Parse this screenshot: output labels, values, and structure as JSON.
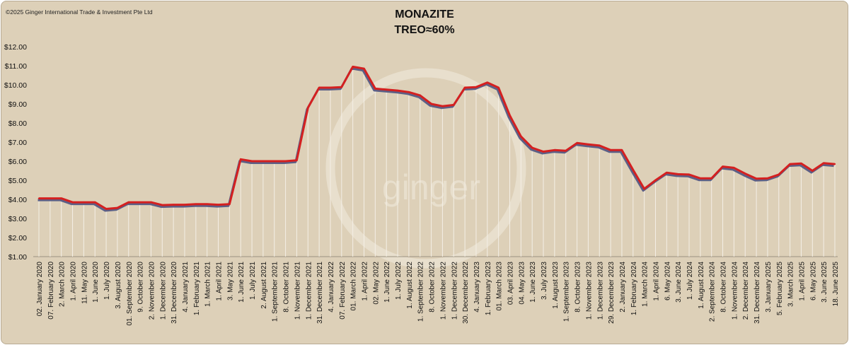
{
  "copyright": "©2025 Ginger International Trade & Investment Pte Ltd",
  "watermark": "ginger",
  "chart_data": {
    "type": "line",
    "title": "MONAZITE",
    "subtitle": "TREO≈60%",
    "ylim": [
      1,
      12
    ],
    "yticks": [
      "$1.00",
      "$2.00",
      "$3.00",
      "$4.00",
      "$5.00",
      "$6.00",
      "$7.00",
      "$8.00",
      "$9.00",
      "$10.00",
      "$11.00",
      "$12.00"
    ],
    "line_color": "#d42020",
    "x_labels": [
      "02. January 2020",
      "07. February 2020",
      "2. March 2020",
      "1. April 2020",
      "11. May 2020",
      "1. June 2020",
      "1. July 2020",
      "3. August 2020",
      "01. September 2020",
      "9. October 2020",
      "2. November 2020",
      "1. December 2020",
      "31. December 2020",
      "4. January 2021",
      "1. February 2021",
      "1. March 2021",
      "1. April 2021",
      "3. May 2021",
      "1. June 2021",
      "1. July 2021",
      "2. August 2021",
      "1. September 2021",
      "8. October 2021",
      "1. November 2021",
      "1. December 2021",
      "31. December 2021",
      "4. January 2022",
      "07. February 2022",
      "01. March 2022",
      "1. April 2022",
      "02. May 2022",
      "1. June 2022",
      "1. July 2022",
      "1. August 2022",
      "1. September 2022",
      "8. October 2022",
      "1. November 2022",
      "1. December 2022",
      "30. December 2022",
      "4. January 2023",
      "1. February 2023",
      "01. March 2023",
      "03. April 2023",
      "04. May 2023",
      "1. June 2023",
      "3. July 2023",
      "1. August 2023",
      "1. September 2023",
      "8. October 2023",
      "1. November 2023",
      "1. December 2023",
      "29. December 2023",
      "2. January 2024",
      "1. February 2024",
      "1. March 2024",
      "1. April 2024",
      "6. May 2024",
      "3. June 2024",
      "1. July 2024",
      "1. August 2024",
      "2. September 2024",
      "8. October 2024",
      "1. November 2024",
      "2. December 2024",
      "31. December 2024",
      "3. January 2025",
      "5. February 2025",
      "3. March 2025",
      "1. April 2025",
      "6. May 2025",
      "3. June 2025",
      "18. June 2025"
    ],
    "values": [
      4.05,
      4.05,
      4.05,
      3.85,
      3.85,
      3.85,
      3.5,
      3.55,
      3.85,
      3.85,
      3.85,
      3.7,
      3.72,
      3.72,
      3.75,
      3.75,
      3.72,
      3.75,
      6.1,
      6.0,
      6.0,
      6.0,
      6.0,
      6.05,
      8.8,
      9.85,
      9.85,
      9.88,
      10.95,
      10.85,
      9.8,
      9.75,
      9.7,
      9.62,
      9.45,
      9.0,
      8.88,
      8.95,
      9.85,
      9.88,
      10.12,
      9.85,
      8.4,
      7.3,
      6.7,
      6.5,
      6.58,
      6.55,
      6.95,
      6.88,
      6.82,
      6.58,
      6.58,
      5.55,
      4.55,
      5.0,
      5.4,
      5.32,
      5.3,
      5.1,
      5.1,
      5.72,
      5.65,
      5.35,
      5.08,
      5.1,
      5.3,
      5.85,
      5.88,
      5.5,
      5.9,
      5.85
    ]
  }
}
